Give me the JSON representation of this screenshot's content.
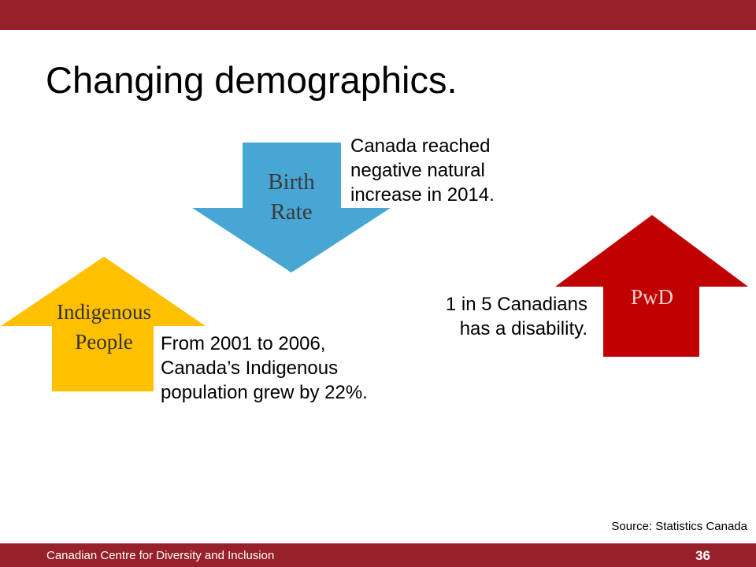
{
  "slide": {
    "title": "Changing demographics.",
    "footer_org": "Canadian Centre for Diversity and Inclusion",
    "page_number": "36",
    "source": "Source: Statistics Canada"
  },
  "colors": {
    "bar": "#97212a",
    "birth_rate_arrow": "#47a6d4",
    "indigenous_arrow": "#ffc000",
    "pwd_arrow": "#c00000"
  },
  "arrows": {
    "birth_rate": {
      "direction": "down",
      "line1": "Birth",
      "line2": "Rate",
      "note": [
        "Canada reached",
        "negative natural",
        "increase in 2014."
      ]
    },
    "indigenous": {
      "direction": "up",
      "line1": "Indigenous",
      "line2": "People",
      "note": [
        "From 2001 to 2006,",
        "Canada’s Indigenous",
        "population grew by 22%."
      ]
    },
    "pwd": {
      "direction": "up",
      "line1": "PwD",
      "note": [
        "1 in 5 Canadians",
        "has a disability."
      ]
    }
  }
}
